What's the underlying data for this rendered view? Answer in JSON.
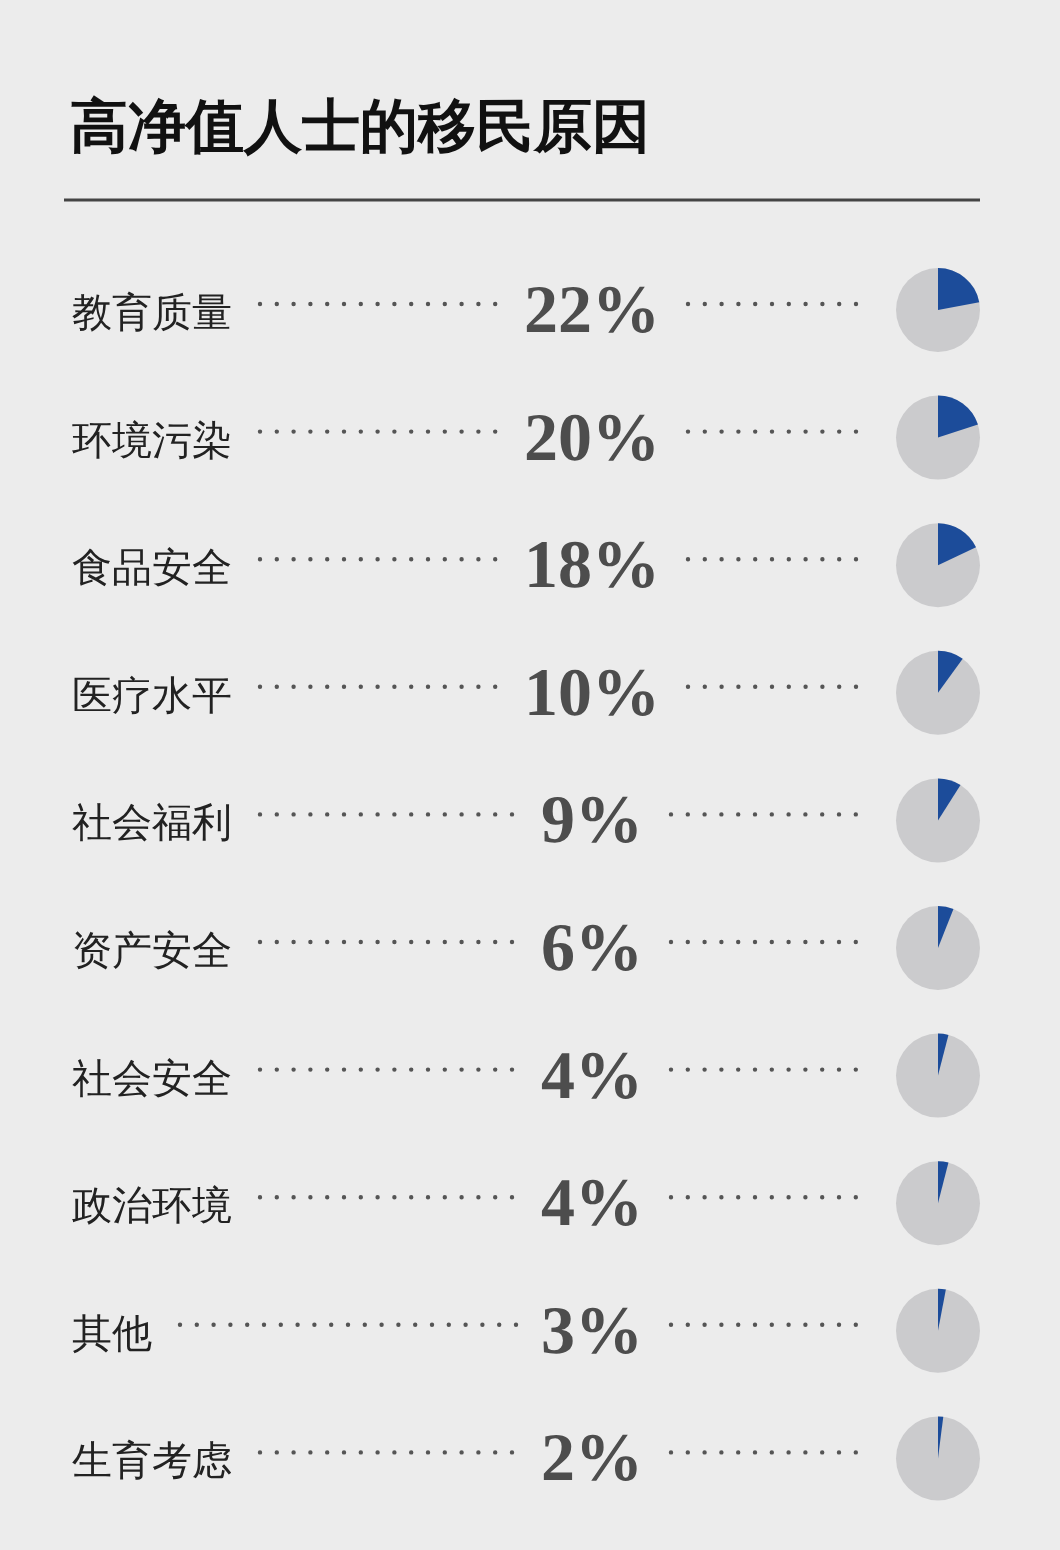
{
  "chart_data": {
    "type": "other",
    "title": "高净值人士的移民原因",
    "categories": [
      "教育质量",
      "环境污染",
      "食品安全",
      "医疗水平",
      "社会福利",
      "资产安全",
      "社会安全",
      "政治环境",
      "其他",
      "生育考虑"
    ],
    "values": [
      22,
      20,
      18,
      10,
      9,
      6,
      4,
      4,
      3,
      2
    ],
    "value_labels": [
      "22%",
      "20%",
      "18%",
      "10%",
      "9%",
      "6%",
      "4%",
      "4%",
      "3%",
      "2%"
    ]
  }
}
